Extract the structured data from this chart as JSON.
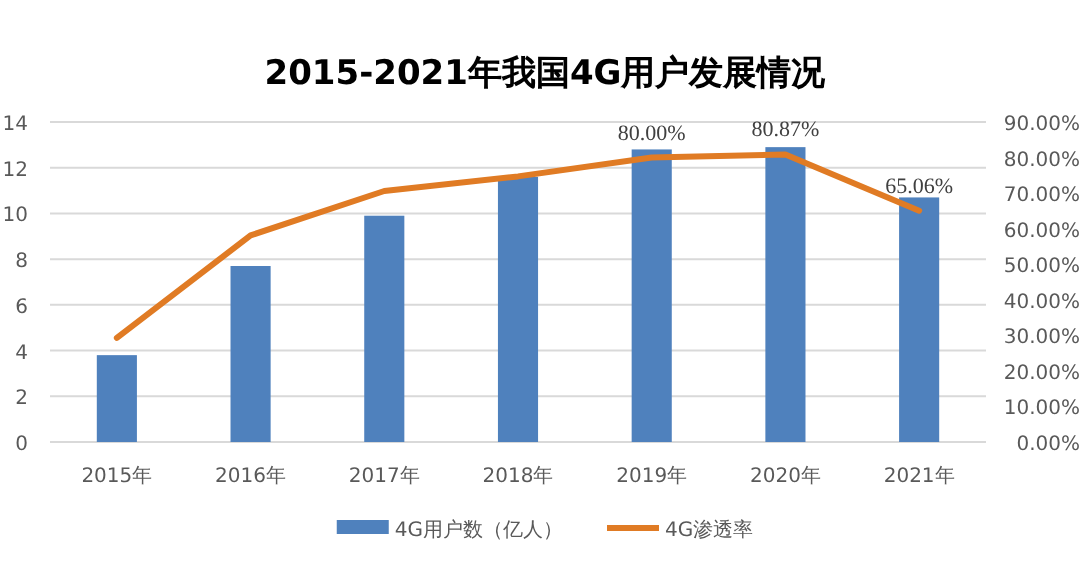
{
  "chart_data": {
    "type": "bar",
    "title": "2015-2021年我国4G用户发展情况",
    "categories": [
      "2015年",
      "2016年",
      "2017年",
      "2018年",
      "2019年",
      "2020年",
      "2021年"
    ],
    "series": [
      {
        "name": "4G用户数（亿人）",
        "color": "#4f81bd",
        "values": [
          3.8,
          7.7,
          9.9,
          11.6,
          12.8,
          12.9,
          10.7
        ]
      },
      {
        "name": "4G渗透率",
        "type": "line",
        "axis": "y2",
        "color": "#e07b24",
        "values": [
          29.3,
          58.1,
          70.6,
          74.7,
          80.0,
          80.87,
          65.06
        ],
        "value_labels": [
          null,
          null,
          null,
          null,
          "80.00%",
          "80.87%",
          "65.06%"
        ]
      }
    ],
    "ylim": [
      0,
      14
    ],
    "yticks": [
      0,
      2,
      4,
      6,
      8,
      10,
      12,
      14
    ],
    "y2lim": [
      0,
      90
    ],
    "y2ticks": [
      {
        "value": 0,
        "label": "0.00%"
      },
      {
        "value": 10,
        "label": "10.00%"
      },
      {
        "value": 20,
        "label": "20.00%"
      },
      {
        "value": 30,
        "label": "30.00%"
      },
      {
        "value": 40,
        "label": "40.00%"
      },
      {
        "value": 50,
        "label": "50.00%"
      },
      {
        "value": 60,
        "label": "60.00%"
      },
      {
        "value": 70,
        "label": "70.00%"
      },
      {
        "value": 80,
        "label": "80.00%"
      },
      {
        "value": 90,
        "label": "90.00%"
      }
    ],
    "grid": "y",
    "legend": "bottom",
    "marker": "none",
    "line_style": "solid"
  }
}
